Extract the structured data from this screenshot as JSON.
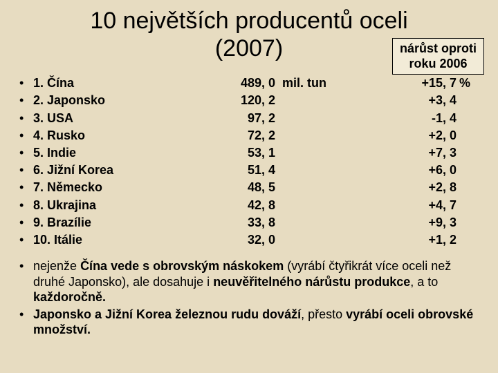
{
  "title_line1": "10 největších producentů oceli",
  "title_line2": "(2007)",
  "badge_line1": "nárůst oproti",
  "badge_line2": "roku 2006",
  "unit_label": "mil. tun",
  "growth_unit": "%",
  "rows": [
    {
      "country": "1. Čína",
      "value": "489, 0",
      "growth": "+15, 7"
    },
    {
      "country": "2. Japonsko",
      "value": "120, 2",
      "growth": "+3, 4"
    },
    {
      "country": "3. USA",
      "value": "97, 2",
      "growth": "-1, 4"
    },
    {
      "country": "4. Rusko",
      "value": "72, 2",
      "growth": "+2, 0"
    },
    {
      "country": "5. Indie",
      "value": "53, 1",
      "growth": "+7, 3"
    },
    {
      "country": "6. Jižní Korea",
      "value": "51, 4",
      "growth": "+6, 0"
    },
    {
      "country": "7. Německo",
      "value": "48, 5",
      "growth": "+2, 8"
    },
    {
      "country": "8. Ukrajina",
      "value": "42, 8",
      "growth": "+4, 7"
    },
    {
      "country": "9. Brazílie",
      "value": "33, 8",
      "growth": "+9, 3"
    },
    {
      "country": "10. Itálie",
      "value": "32, 0",
      "growth": "+1, 2"
    }
  ],
  "note1_a": "nejenže ",
  "note1_b": "Čína vede s obrovským náskokem",
  "note1_c": " (vyrábí čtyřikrát více oceli než druhé Japonsko), ale dosahuje i ",
  "note1_d": "neuvěřitelného nárůstu produkce",
  "note1_e": ", a to ",
  "note1_f": "každoročně.",
  "note2_a": "Japonsko a Jižní Korea železnou rudu dováží",
  "note2_b": ", přesto ",
  "note2_c": "vyrábí oceli obrovské množství.",
  "style": {
    "background": "#e7dcc1",
    "badge_bg": "#f2ebd7",
    "text_color": "#000000",
    "title_fontsize": 34,
    "body_fontsize": 18,
    "font_family": "Arial"
  }
}
